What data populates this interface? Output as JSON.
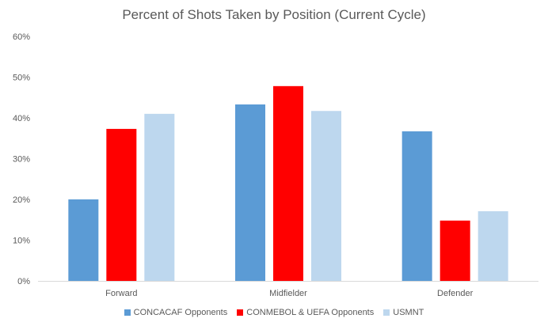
{
  "chart_data": {
    "type": "bar",
    "title": "Percent of Shots Taken by Position (Current Cycle)",
    "categories": [
      "Forward",
      "Midfielder",
      "Defender"
    ],
    "series": [
      {
        "name": "CONCACAF Opponents",
        "values": [
          20,
          43.3,
          36.7
        ],
        "color": "#5B9BD5"
      },
      {
        "name": "CONMEBOL & UEFA Opponents",
        "values": [
          37.3,
          47.8,
          14.8
        ],
        "color": "#FF0000"
      },
      {
        "name": "USMNT",
        "values": [
          41,
          41.7,
          17.1
        ],
        "color": "#BDD7EE"
      }
    ],
    "ylim": [
      0,
      60
    ],
    "yticks": [
      "0%",
      "10%",
      "20%",
      "30%",
      "40%",
      "50%",
      "60%"
    ],
    "ytick_values": [
      0,
      10,
      20,
      30,
      40,
      50,
      60
    ],
    "grid": false,
    "legend_position": "bottom"
  }
}
